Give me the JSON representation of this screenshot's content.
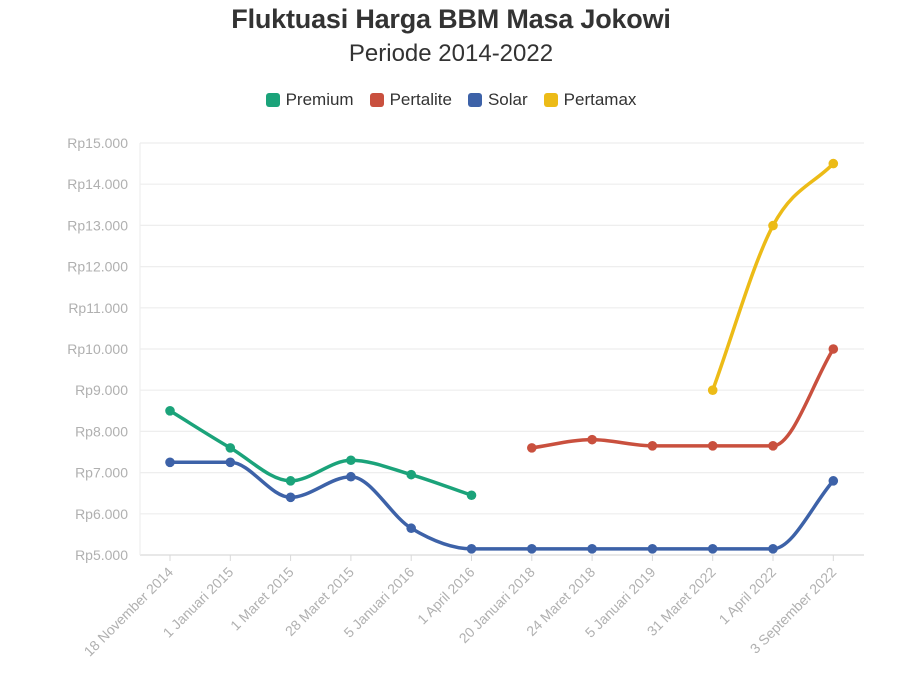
{
  "chart_data": {
    "type": "line",
    "title": "Fluktuasi Harga BBM Masa Jokowi",
    "subtitle": "Periode 2014-2022",
    "ylim": [
      5000,
      15000
    ],
    "yticks": [
      5000,
      6000,
      7000,
      8000,
      9000,
      10000,
      11000,
      12000,
      13000,
      14000,
      15000
    ],
    "ytick_labels": [
      "Rp5.000",
      "Rp6.000",
      "Rp7.000",
      "Rp8.000",
      "Rp9.000",
      "Rp10.000",
      "Rp11.000",
      "Rp12.000",
      "Rp13.000",
      "Rp14.000",
      "Rp15.000"
    ],
    "categories": [
      "18 November 2014",
      "1 Januari 2015",
      "1 Maret 2015",
      "28 Maret 2015",
      "5 Januari 2016",
      "1 April 2016",
      "20 Januari 2018",
      "24 Maret 2018",
      "5 Januari 2019",
      "31 Maret 2022",
      "1 April 2022",
      "3 September 2022"
    ],
    "legend_position": "top-center",
    "grid": true,
    "series": [
      {
        "name": "Premium",
        "color": "#1ba37a",
        "values": [
          8500,
          7600,
          6800,
          7300,
          6950,
          6450,
          null,
          null,
          null,
          null,
          null,
          null
        ]
      },
      {
        "name": "Pertalite",
        "color": "#c9503e",
        "values": [
          null,
          null,
          null,
          null,
          null,
          null,
          7600,
          7800,
          7650,
          7650,
          7650,
          10000
        ]
      },
      {
        "name": "Solar",
        "color": "#3d62a8",
        "values": [
          7250,
          7250,
          6400,
          6900,
          5650,
          5150,
          5150,
          5150,
          5150,
          5150,
          5150,
          6800
        ]
      },
      {
        "name": "Pertamax",
        "color": "#ecbb17",
        "values": [
          null,
          null,
          null,
          null,
          null,
          null,
          null,
          null,
          null,
          9000,
          12995,
          14500
        ]
      }
    ]
  }
}
